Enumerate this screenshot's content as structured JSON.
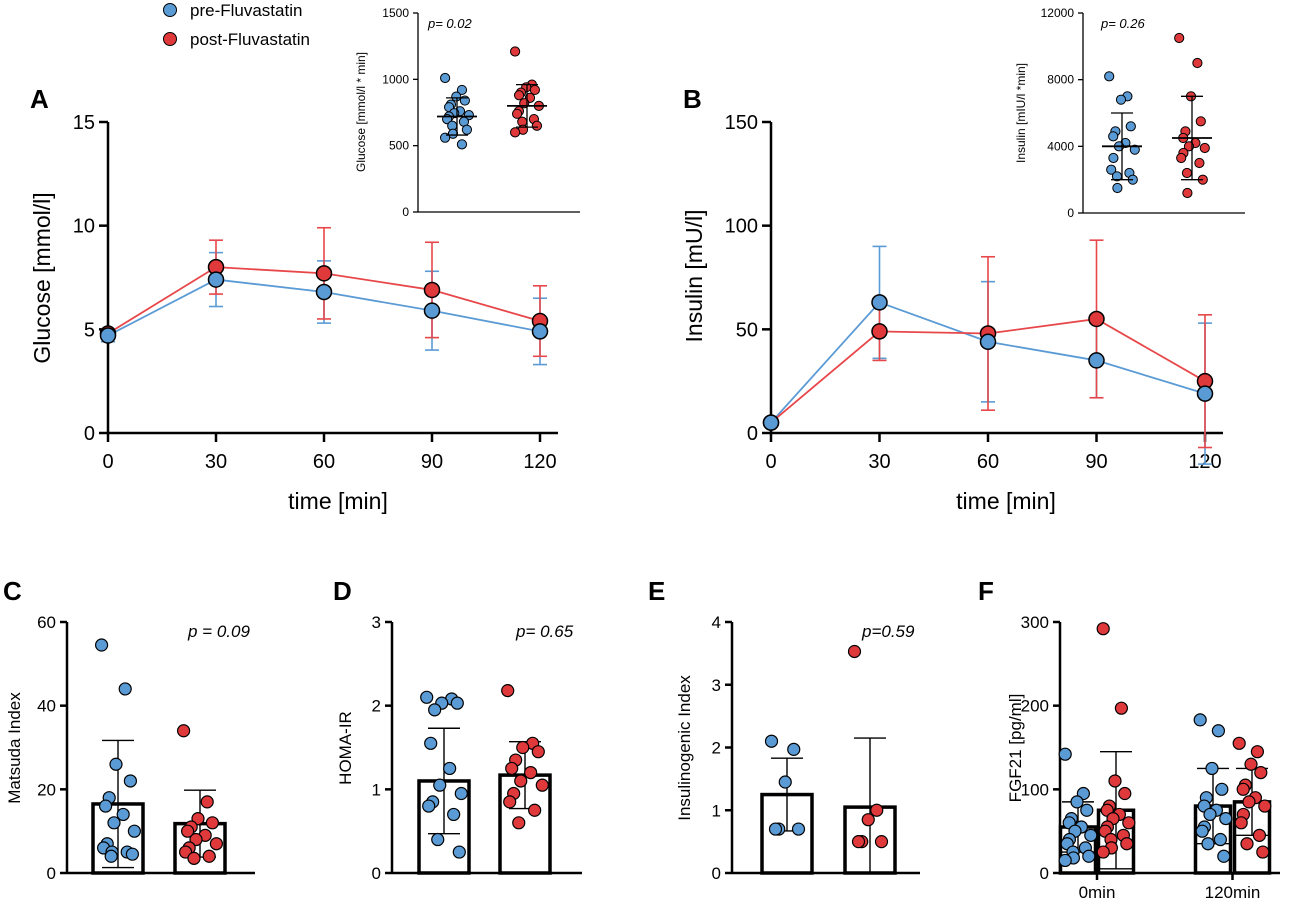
{
  "colors": {
    "pre": "#5b9bd5",
    "post": "#e8474a",
    "pre_dot": "#5b9bd5",
    "post_dot": "#e0393c"
  },
  "legend": {
    "pre": "pre-Fluvastatin",
    "post": "post-Fluvastatin"
  },
  "chart_data": [
    {
      "id": "A",
      "letter": "A",
      "type": "line",
      "xlabel": "time [min]",
      "ylabel": "Glucose [mmol/l]",
      "x": [
        0,
        30,
        60,
        90,
        120
      ],
      "xticks": [
        "0",
        "30",
        "60",
        "90",
        "120"
      ],
      "ylim": [
        0,
        15
      ],
      "yticks": [
        0,
        5,
        10,
        15
      ],
      "series": [
        {
          "name": "pre-Fluvastatin",
          "key": "pre",
          "values": [
            4.7,
            7.4,
            6.8,
            5.9,
            4.9
          ],
          "err": [
            0.3,
            1.3,
            1.5,
            1.9,
            1.6
          ]
        },
        {
          "name": "post-Fluvastatin",
          "key": "post",
          "values": [
            4.8,
            8.0,
            7.7,
            6.9,
            5.4
          ],
          "err": [
            0.2,
            1.3,
            2.2,
            2.3,
            1.7
          ]
        }
      ]
    },
    {
      "id": "A_inset",
      "type": "scatter",
      "ylabel": "Glucose [mmol/l * min]",
      "ylim": [
        0,
        1500
      ],
      "yticks": [
        0,
        500,
        1000,
        1500
      ],
      "p": "p= 0.02",
      "groups": [
        {
          "key": "pre",
          "mean": 720,
          "sd": 140,
          "points": [
            1010,
            920,
            870,
            840,
            810,
            790,
            760,
            745,
            730,
            720,
            700,
            680,
            650,
            620,
            590,
            560,
            510
          ]
        },
        {
          "key": "post",
          "mean": 800,
          "sd": 160,
          "points": [
            1210,
            960,
            940,
            920,
            900,
            880,
            860,
            820,
            800,
            760,
            740,
            700,
            680,
            650,
            620,
            600
          ]
        }
      ]
    },
    {
      "id": "B",
      "letter": "B",
      "type": "line",
      "xlabel": "time [min]",
      "ylabel": "Insulin [mU/l]",
      "x": [
        0,
        30,
        60,
        90,
        120
      ],
      "xticks": [
        "0",
        "30",
        "60",
        "90",
        "120"
      ],
      "ylim": [
        0,
        150
      ],
      "yticks": [
        0,
        50,
        100,
        150
      ],
      "series": [
        {
          "name": "pre-Fluvastatin",
          "key": "pre",
          "values": [
            5,
            63,
            44,
            35,
            19
          ],
          "err": [
            0,
            27,
            29,
            18,
            34
          ]
        },
        {
          "name": "post-Fluvastatin",
          "key": "post",
          "values": [
            5,
            49,
            48,
            55,
            25
          ],
          "err": [
            0,
            14,
            37,
            38,
            32
          ]
        }
      ]
    },
    {
      "id": "B_inset",
      "type": "scatter",
      "ylabel": "Insulin [mIU/l *min]",
      "ylim": [
        0,
        12000
      ],
      "yticks": [
        0,
        4000,
        8000,
        12000
      ],
      "p": "p= 0.26",
      "groups": [
        {
          "key": "pre",
          "mean": 4000,
          "sd": 2000,
          "points": [
            8200,
            7000,
            6800,
            5200,
            4900,
            4600,
            4200,
            4000,
            3800,
            3300,
            2600,
            2400,
            2200,
            2000,
            1500
          ]
        },
        {
          "key": "post",
          "mean": 4500,
          "sd": 2500,
          "points": [
            10500,
            9000,
            7000,
            5500,
            4900,
            4500,
            4200,
            4000,
            3900,
            3600,
            3300,
            3000,
            2400,
            2000,
            1200
          ]
        }
      ]
    },
    {
      "id": "C",
      "letter": "C",
      "type": "bar",
      "ylabel": "Matsuda Index",
      "ylim": [
        0,
        60
      ],
      "yticks": [
        0,
        20,
        40,
        60
      ],
      "xticks": [],
      "p": "p = 0.09",
      "groups": [
        {
          "key": "pre",
          "mean": 16.5,
          "sd": 15.2,
          "points": [
            54.5,
            44,
            26,
            22,
            18,
            16,
            14,
            12,
            10,
            7,
            6,
            5,
            5,
            4.5,
            4
          ]
        },
        {
          "key": "post",
          "mean": 11.8,
          "sd": 8,
          "points": [
            34,
            17,
            13,
            12,
            11,
            10,
            9,
            8,
            7,
            6,
            5,
            4,
            3.5
          ]
        }
      ]
    },
    {
      "id": "D",
      "letter": "D",
      "type": "bar",
      "ylabel": "HOMA-IR",
      "ylim": [
        0,
        3
      ],
      "yticks": [
        0,
        1,
        2,
        3
      ],
      "xticks": [],
      "p": "p= 0.65",
      "groups": [
        {
          "key": "pre",
          "mean": 1.1,
          "sd": 0.63,
          "points": [
            2.1,
            2.08,
            2.03,
            2.03,
            1.95,
            1.55,
            1.25,
            1.05,
            0.95,
            0.85,
            0.8,
            0.7,
            0.4,
            0.25
          ]
        },
        {
          "key": "post",
          "mean": 1.17,
          "sd": 0.4,
          "points": [
            2.18,
            1.55,
            1.5,
            1.45,
            1.35,
            1.25,
            1.2,
            1.1,
            1.05,
            0.95,
            0.85,
            0.75,
            0.6
          ]
        }
      ]
    },
    {
      "id": "E",
      "letter": "E",
      "type": "bar",
      "ylabel": "Insulinogenic Index",
      "ylim": [
        0,
        4
      ],
      "yticks": [
        0,
        1,
        2,
        3,
        4
      ],
      "xticks": [],
      "p": "p=0.59",
      "groups": [
        {
          "key": "pre",
          "mean": 1.25,
          "sd": 0.58,
          "points": [
            2.1,
            1.97,
            1.45,
            0.7,
            0.7,
            0.7
          ]
        },
        {
          "key": "post",
          "mean": 1.05,
          "sd": 1.1,
          "points": [
            3.53,
            1.0,
            0.85,
            0.5,
            0.5,
            0.5
          ]
        }
      ]
    },
    {
      "id": "F",
      "letter": "F",
      "type": "bar",
      "ylabel": "FGF21 [pg/ml]",
      "ylim": [
        0,
        300
      ],
      "yticks": [
        0,
        100,
        200,
        300
      ],
      "xticks": [
        "0min",
        "120min"
      ],
      "groups": [
        {
          "key": "pre",
          "cat": 0,
          "mean": 55,
          "sd": 30,
          "points": [
            142,
            95,
            85,
            75,
            65,
            60,
            55,
            50,
            45,
            40,
            35,
            30,
            25,
            20,
            18,
            15
          ]
        },
        {
          "key": "post",
          "cat": 0,
          "mean": 75,
          "sd": 70,
          "points": [
            292,
            197,
            110,
            95,
            80,
            75,
            70,
            65,
            60,
            55,
            50,
            45,
            40,
            35,
            30,
            25
          ]
        },
        {
          "key": "pre",
          "cat": 1,
          "mean": 80,
          "sd": 45,
          "points": [
            183,
            170,
            125,
            100,
            90,
            80,
            75,
            70,
            65,
            55,
            50,
            40,
            35,
            20
          ]
        },
        {
          "key": "post",
          "cat": 1,
          "mean": 85,
          "sd": 40,
          "points": [
            155,
            145,
            130,
            120,
            105,
            100,
            90,
            85,
            80,
            70,
            60,
            45,
            35,
            25
          ]
        }
      ]
    }
  ]
}
